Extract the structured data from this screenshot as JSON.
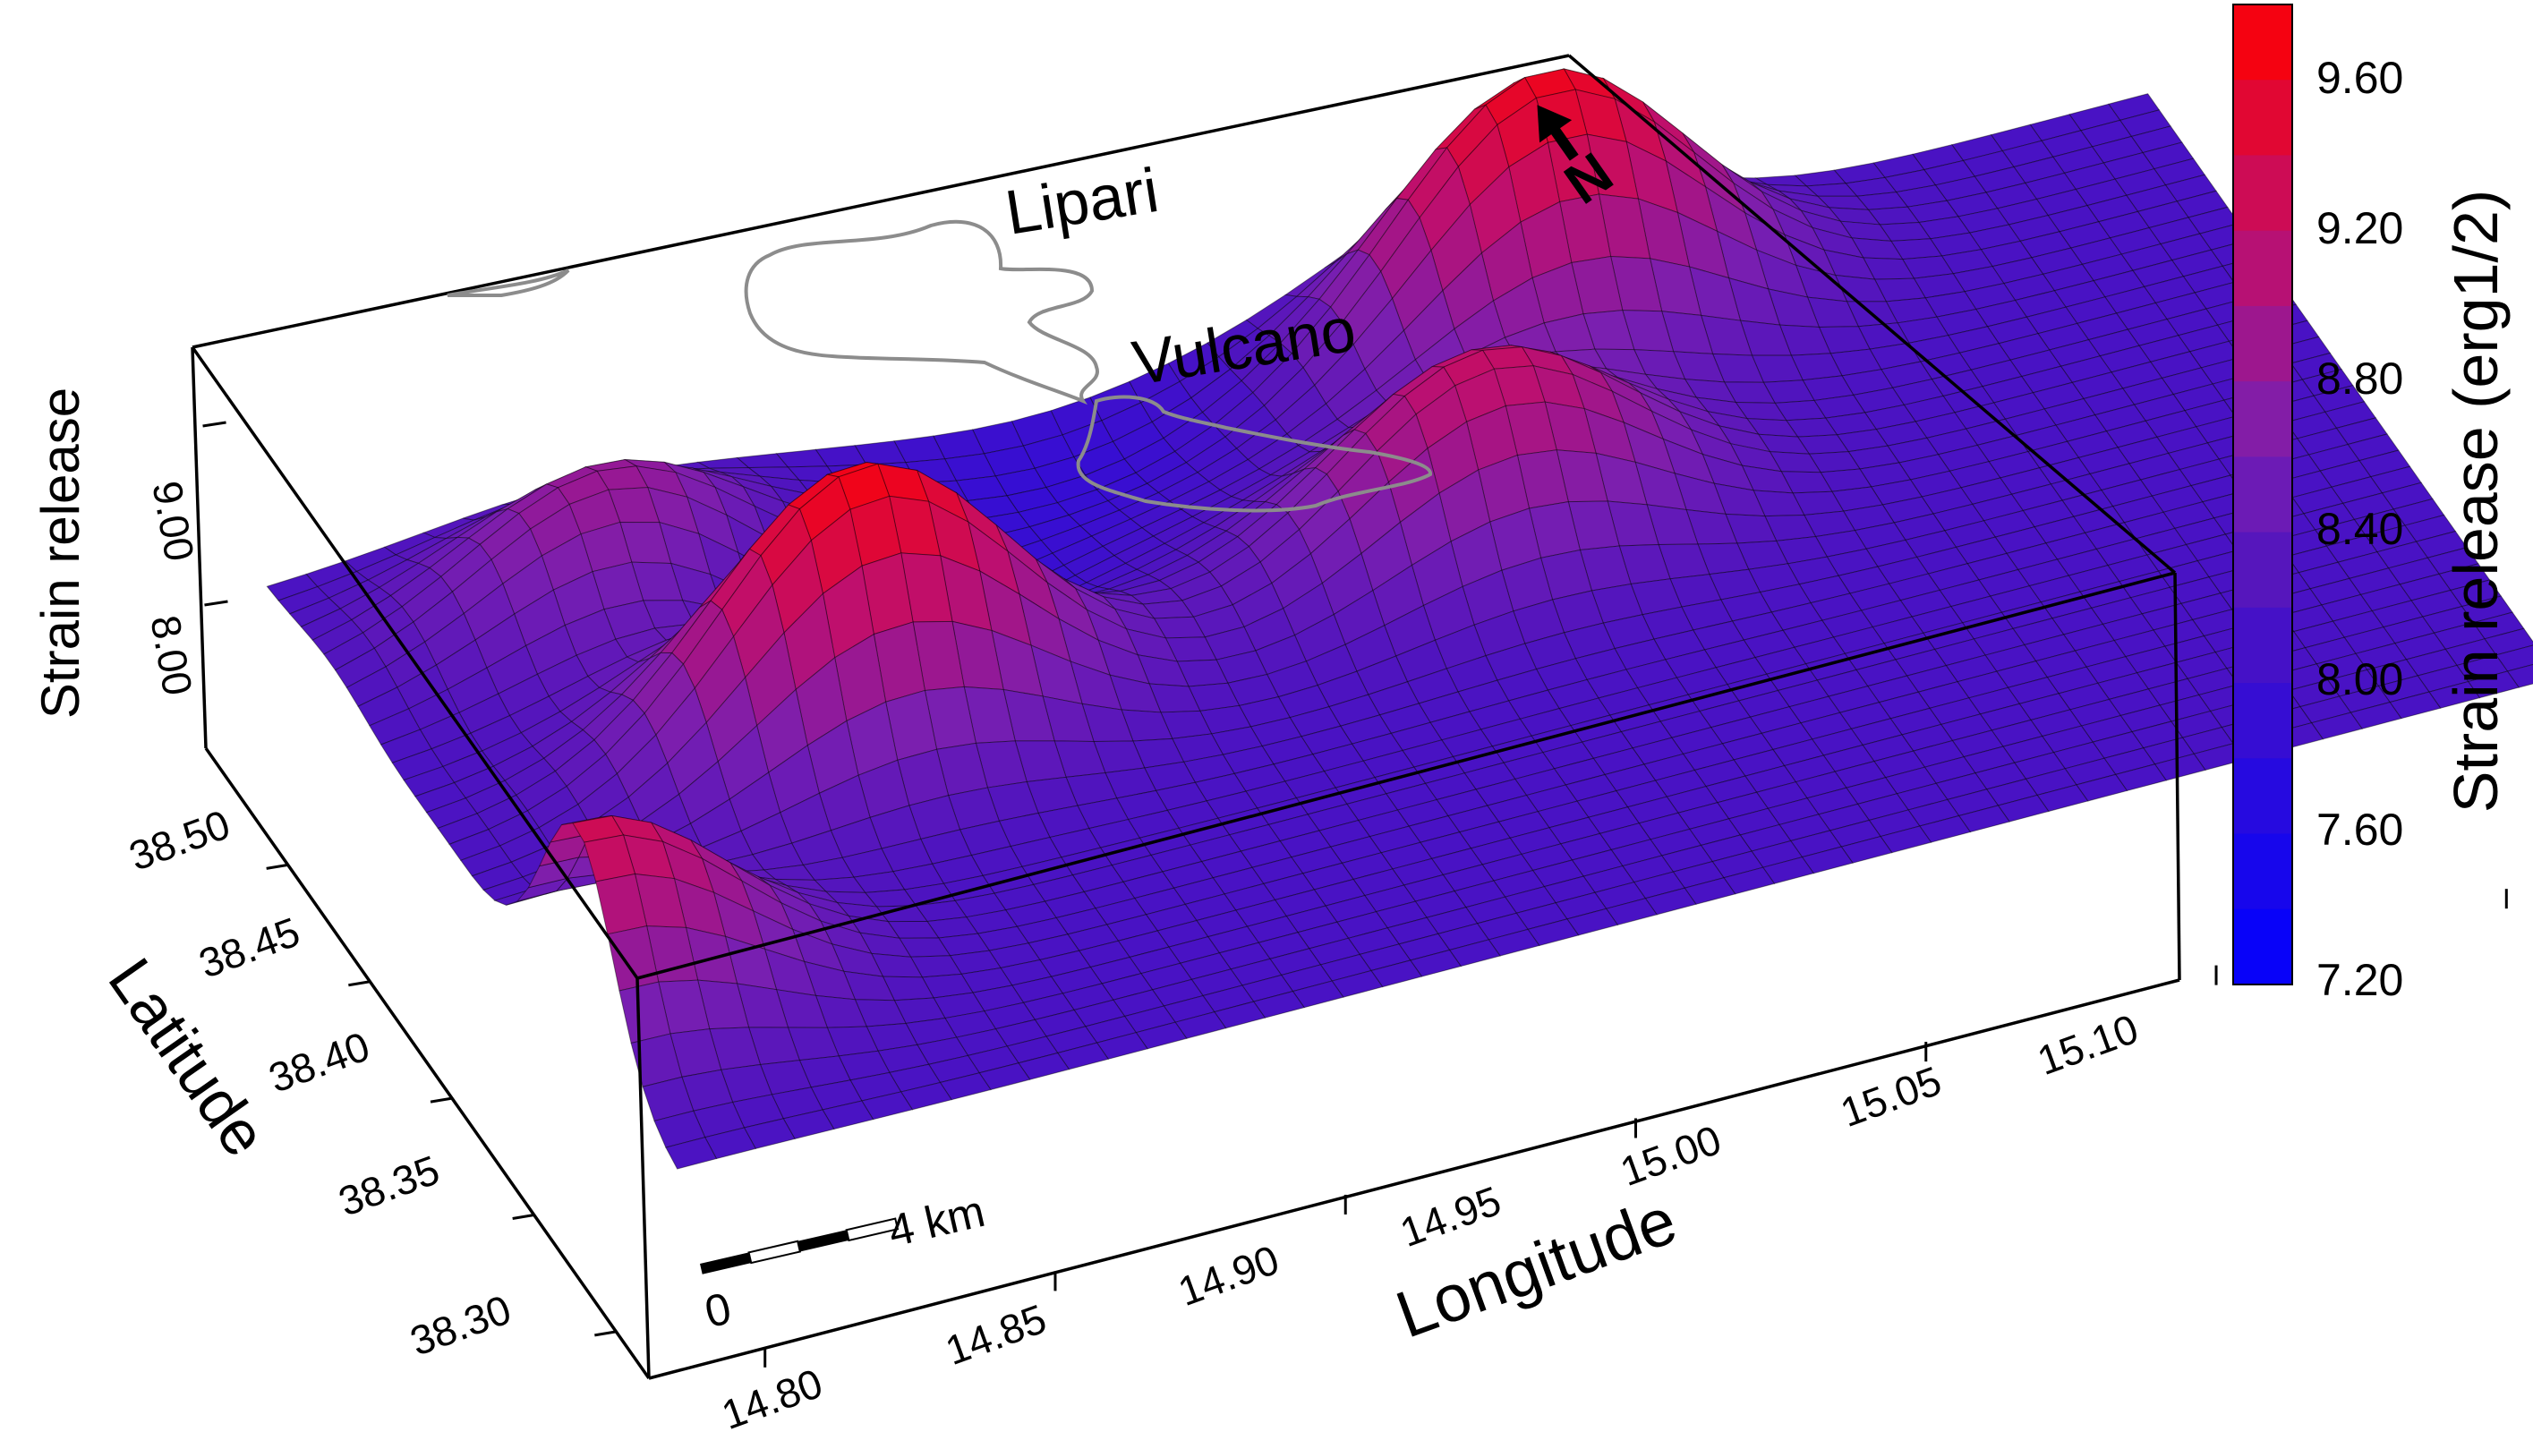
{
  "chart_data": {
    "type": "surface3d",
    "z_title": "Strain release",
    "x_title": "Longitude",
    "y_title": "Latitude",
    "x_ticks": [
      "14.80",
      "14.85",
      "14.90",
      "14.95",
      "15.00",
      "15.05",
      "15.10"
    ],
    "y_ticks": [
      "38.30",
      "38.35",
      "38.40",
      "38.45",
      "38.50"
    ],
    "z_ticks": [
      "8.00",
      "9.00"
    ],
    "xlim": [
      14.78,
      15.12
    ],
    "ylim": [
      38.28,
      38.55
    ],
    "zlim": [
      7.2,
      9.8
    ],
    "colorbar": {
      "label": "Strain release (erg1/2)",
      "ticks": [
        "9.60",
        "9.20",
        "8.80",
        "8.40",
        "8.00",
        "7.60",
        "7.20"
      ],
      "low_color": "#0000ff",
      "mid_color": "#7a1fb0",
      "high_color": "#ff0000"
    },
    "places": [
      {
        "name": "Lipari",
        "lon": 14.95,
        "lat": 38.48
      },
      {
        "name": "Vulcano",
        "lon": 14.97,
        "lat": 38.4
      }
    ],
    "scale_bar": {
      "start": "0",
      "end": "4 km"
    },
    "north_arrow": "N",
    "peaks": [
      {
        "lon": 14.86,
        "lat": 38.43,
        "value": 9.7
      },
      {
        "lon": 14.84,
        "lat": 38.5,
        "value": 9.0
      },
      {
        "lon": 14.97,
        "lat": 38.44,
        "value": 9.2
      },
      {
        "lon": 15.0,
        "lat": 38.51,
        "value": 9.6
      },
      {
        "lon": 14.79,
        "lat": 38.35,
        "value": 9.3
      }
    ],
    "lows": [
      {
        "lon": 14.87,
        "lat": 38.48,
        "value": 7.6
      },
      {
        "lon": 14.92,
        "lat": 38.52,
        "value": 7.9
      }
    ]
  }
}
